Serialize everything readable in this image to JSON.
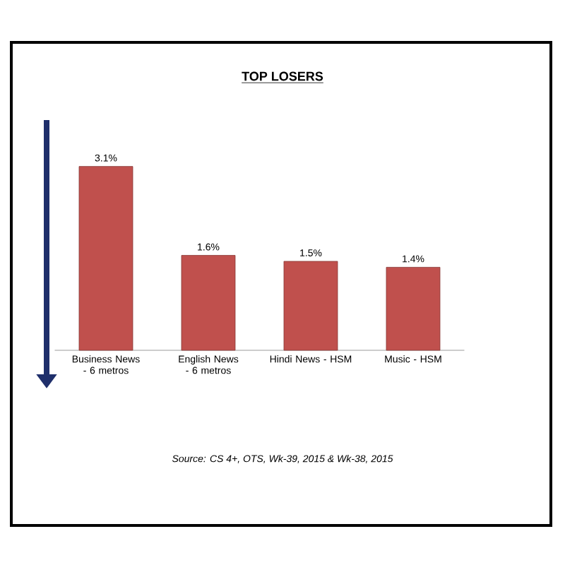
{
  "chart_data": {
    "type": "bar",
    "title": "TOP LOSERS",
    "categories": [
      "Business News - 6 metros",
      "English News - 6 metros",
      "Hindi News - HSM",
      "Music - HSM"
    ],
    "values": [
      3.1,
      1.6,
      1.5,
      1.4
    ],
    "color": "#c0504d",
    "value_labels": [
      "3.1%",
      "1.6%",
      "1.5%",
      "1.4%"
    ],
    "tick_labels": "x",
    "annotations": [
      "Source: CS 4+,  OTS, Wk-39, 2015 & Wk-38, 2015"
    ]
  }
}
